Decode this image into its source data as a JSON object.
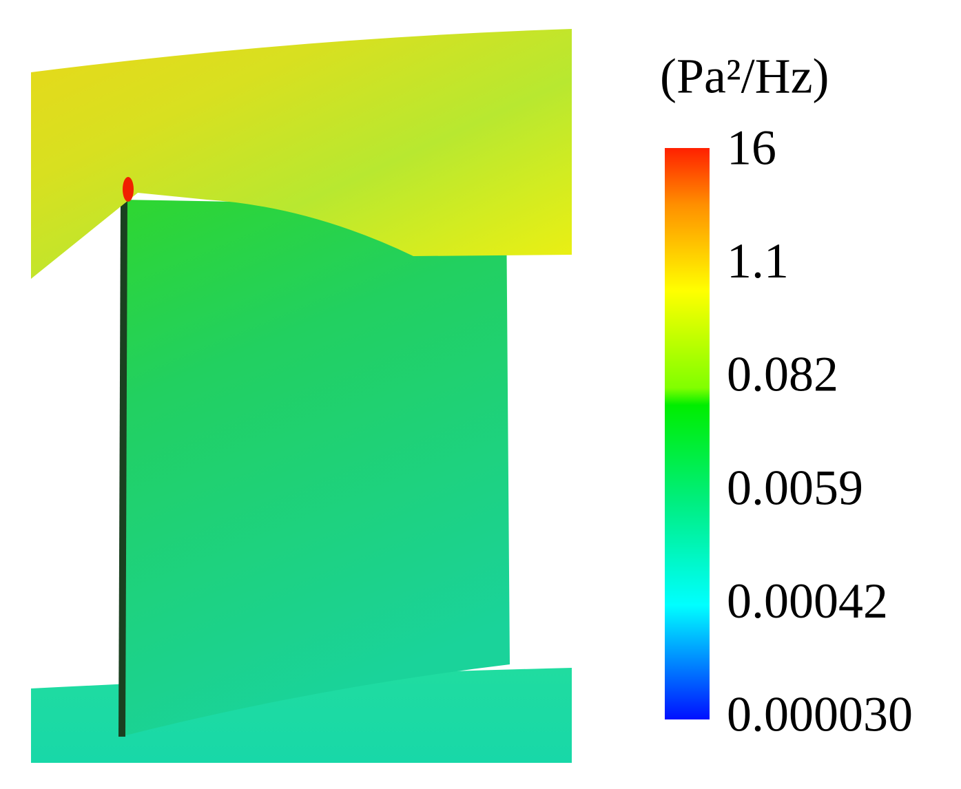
{
  "colorbar": {
    "unit": "(Pa²/Hz)",
    "labels": [
      "16",
      "1.1",
      "0.082",
      "0.0059",
      "0.00042",
      "0.000030"
    ]
  }
}
